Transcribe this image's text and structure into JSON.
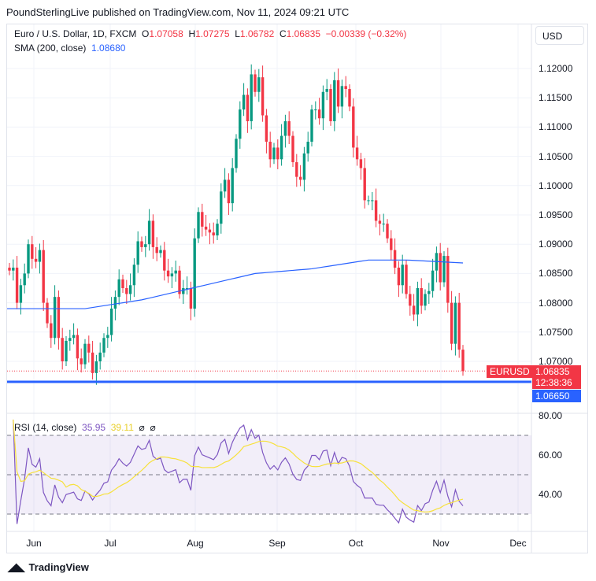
{
  "publisher": "PoundSterlingLive published on TradingView.com, Nov 11, 2024 09:21 UTC",
  "legend": {
    "symbol": "Euro / U.S. Dollar, 1D, FXCM",
    "o_label": "O",
    "o": "1.07058",
    "h_label": "H",
    "h": "1.07275",
    "l_label": "L",
    "l": "1.06782",
    "c_label": "C",
    "c": "1.06835",
    "change": "−0.00339 (−0.32%)",
    "sma_label": "SMA (200, close)",
    "sma_value": "1.08680"
  },
  "rsi_legend": {
    "label": "RSI (14, close)",
    "rsi": "35.95",
    "ma": "39.11",
    "na1": "⌀",
    "na2": "⌀"
  },
  "currency": "USD",
  "price_ticks": [
    "1.12000",
    "1.11500",
    "1.11000",
    "1.10500",
    "1.10000",
    "1.09500",
    "1.09000",
    "1.08500",
    "1.08000",
    "1.07500",
    "1.07000"
  ],
  "rsi_ticks": [
    "80.00",
    "60.00",
    "40.00"
  ],
  "time_ticks": [
    "Jun",
    "Jul",
    "Aug",
    "Sep",
    "Oct",
    "Nov",
    "Dec"
  ],
  "tags": {
    "symbol": "EURUSD",
    "price": "1.06835",
    "countdown": "12:38:36",
    "line_price": "1.06650"
  },
  "footer": "TradingView",
  "colors": {
    "up": "#089981",
    "down": "#f23645",
    "sma": "#2962ff",
    "rsi": "#7e57c2",
    "rsi_ma": "#f7e13b",
    "hline": "#2962ff"
  },
  "chart_data": {
    "type": "candlestick",
    "start": "2024-05-27",
    "closes": [
      1.0855,
      1.086,
      1.08,
      1.083,
      1.085,
      1.09,
      1.0875,
      1.087,
      1.089,
      1.08,
      1.0765,
      1.074,
      1.081,
      1.074,
      1.07,
      1.0735,
      1.074,
      1.0745,
      1.0705,
      1.0695,
      1.073,
      1.0715,
      1.068,
      1.07,
      1.0715,
      1.074,
      1.0745,
      1.079,
      1.081,
      1.084,
      1.0825,
      1.0815,
      1.083,
      1.0865,
      1.0905,
      1.0895,
      1.09,
      1.094,
      1.0895,
      1.0885,
      1.089,
      1.0855,
      1.0845,
      1.085,
      1.0855,
      1.0815,
      1.0825,
      1.0825,
      1.079,
      1.091,
      1.0955,
      1.093,
      1.0925,
      1.092,
      1.0915,
      1.0935,
      1.099,
      1.101,
      1.097,
      1.103,
      1.108,
      1.113,
      1.1155,
      1.111,
      1.119,
      1.116,
      1.1185,
      1.112,
      1.1075,
      1.1045,
      1.1065,
      1.1045,
      1.1085,
      1.111,
      1.1085,
      1.104,
      1.1015,
      1.101,
      1.1055,
      1.1075,
      1.113,
      1.113,
      1.1115,
      1.116,
      1.1165,
      1.111,
      1.118,
      1.1135,
      1.117,
      1.1165,
      1.1135,
      1.1065,
      1.1045,
      1.103,
      1.0975,
      1.0975,
      1.0975,
      1.094,
      1.0935,
      1.0935,
      1.091,
      1.089,
      1.086,
      1.083,
      1.0865,
      1.0815,
      1.0795,
      1.078,
      1.0825,
      1.0795,
      1.0815,
      1.082,
      1.0855,
      1.0885,
      1.0835,
      1.088,
      1.08,
      1.073,
      1.08,
      1.072,
      1.06835
    ],
    "sma_points": [
      [
        0,
        1.079
      ],
      [
        20,
        1.079
      ],
      [
        35,
        1.0805
      ],
      [
        45,
        1.082
      ],
      [
        55,
        1.0835
      ],
      [
        65,
        1.085
      ],
      [
        80,
        1.0858
      ],
      [
        95,
        1.0873
      ],
      [
        105,
        1.0873
      ],
      [
        120,
        1.0868
      ]
    ],
    "hline": 1.0665,
    "ylim": [
      1.065,
      1.1215
    ],
    "rsi_bands": [
      30,
      50,
      70
    ]
  }
}
